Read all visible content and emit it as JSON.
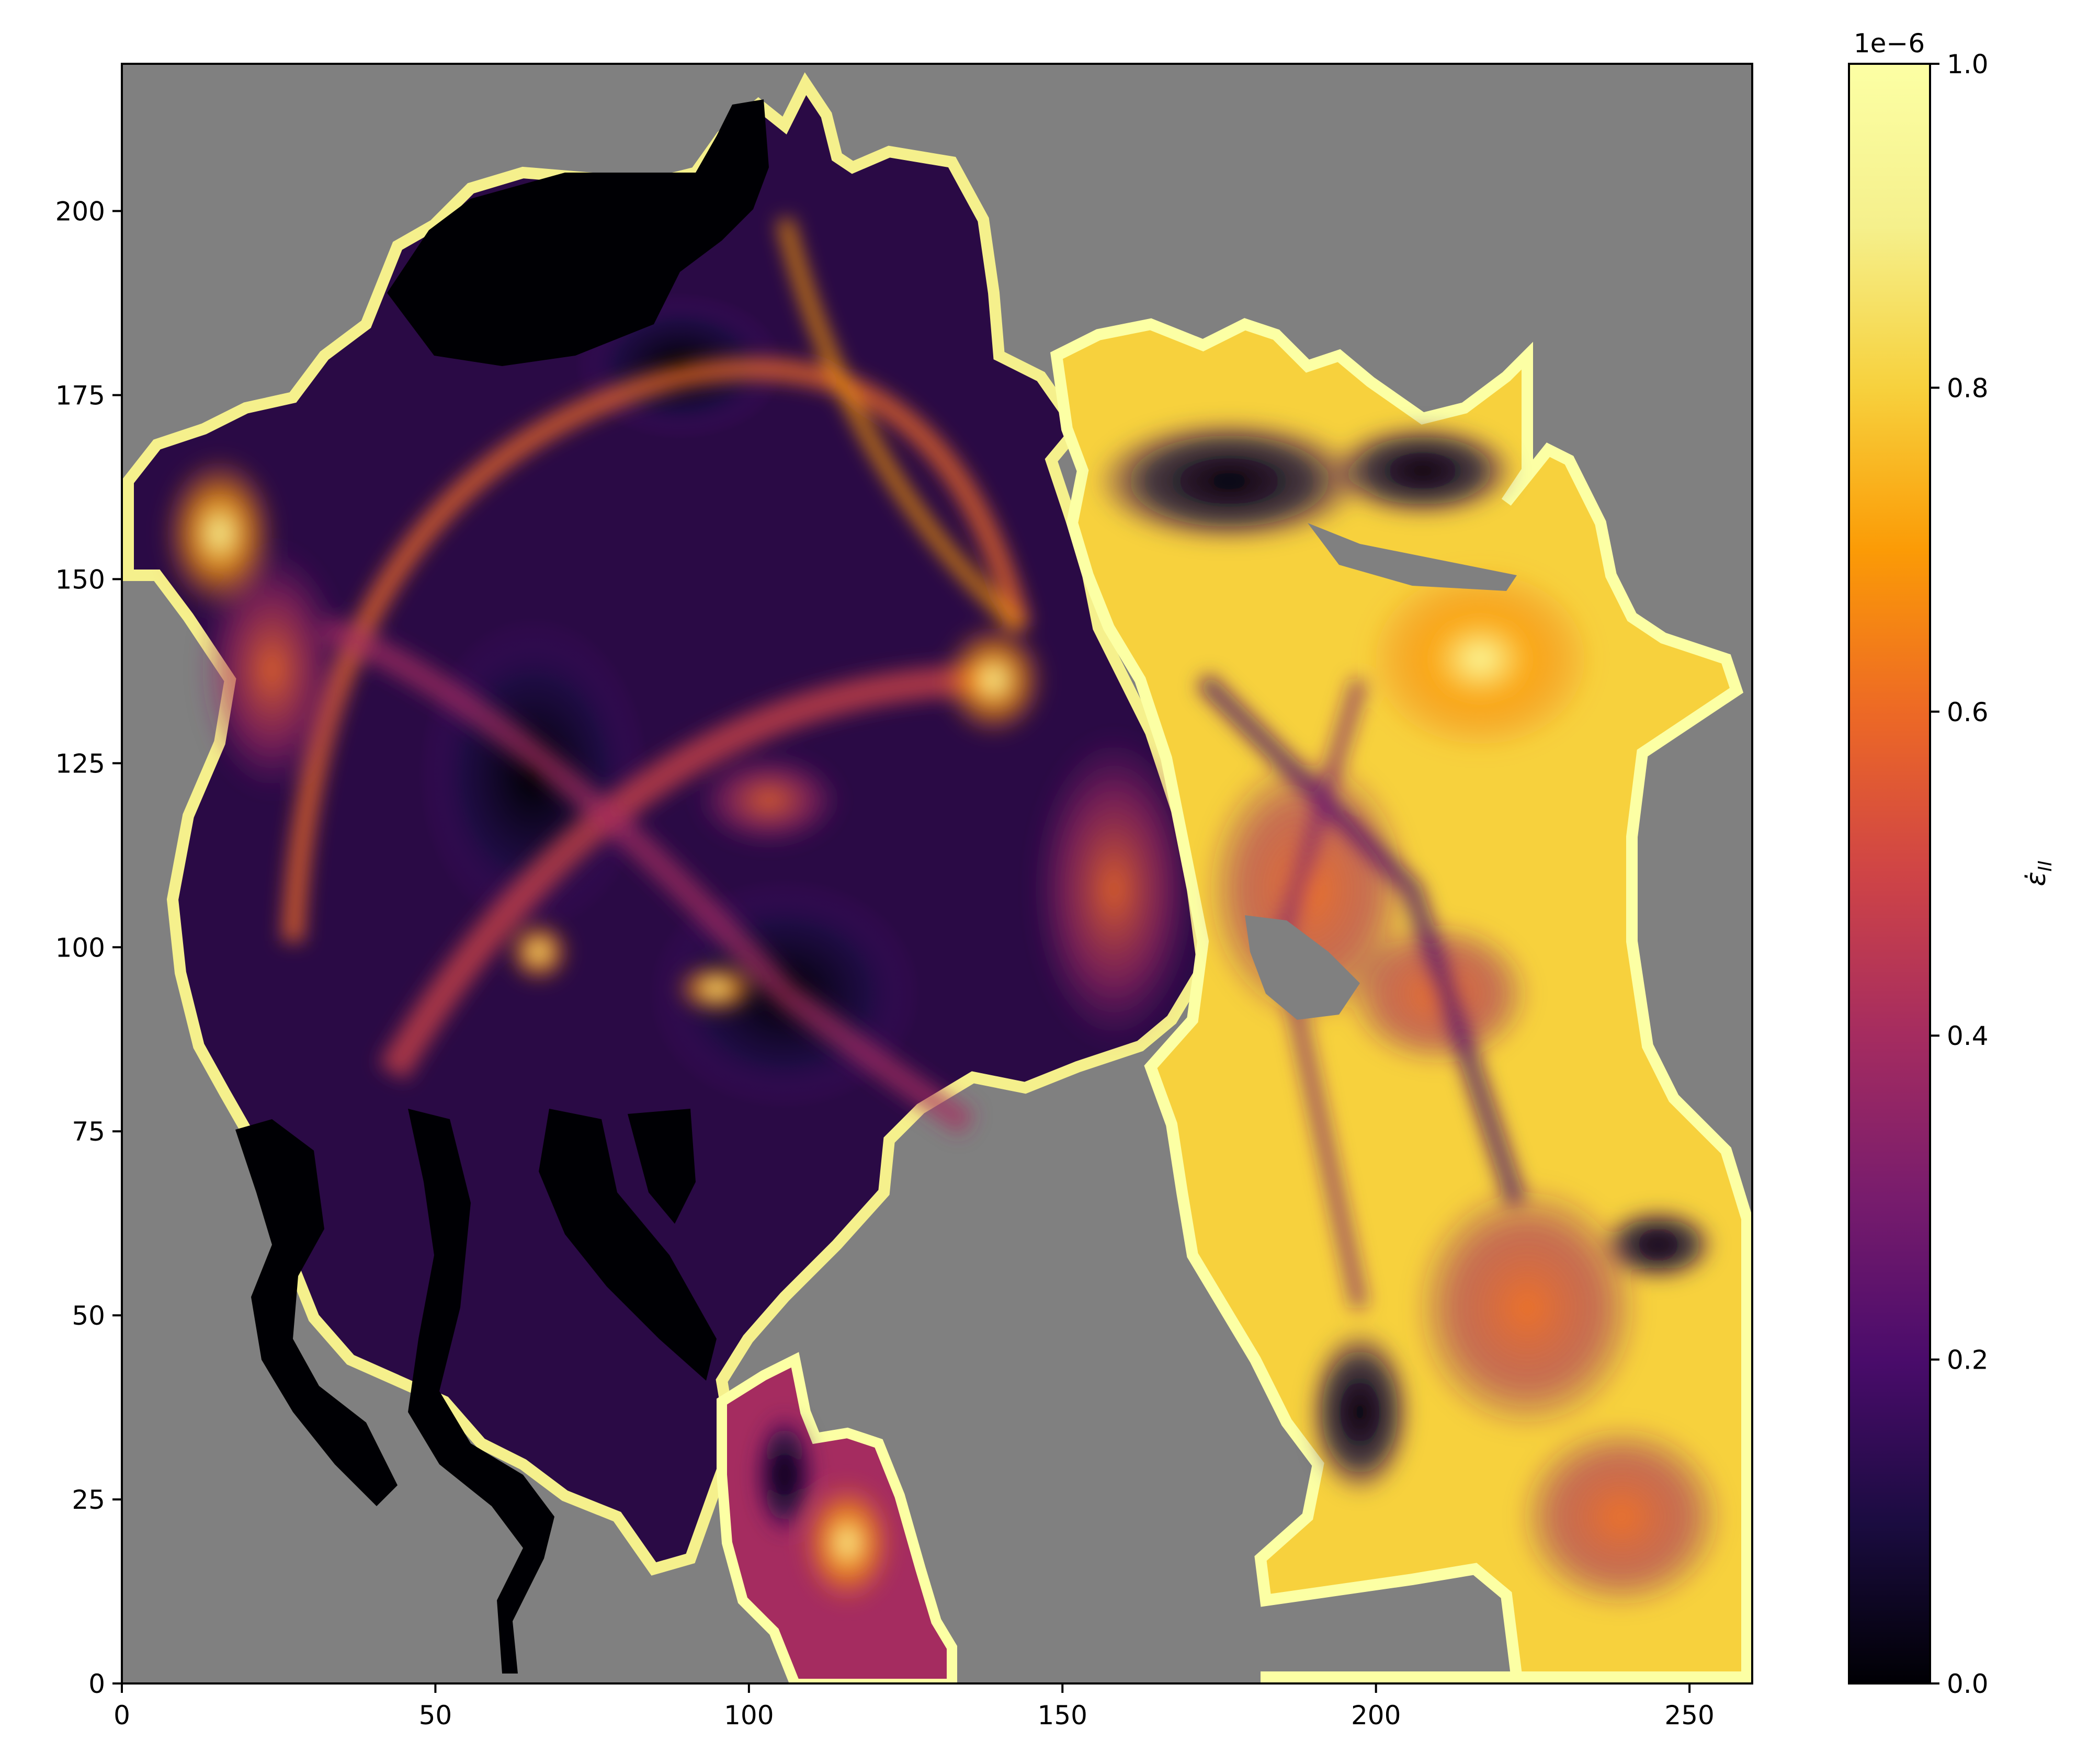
{
  "chart_data": {
    "type": "heatmap",
    "title": "",
    "xlabel": "",
    "ylabel": "",
    "xlim": [
      0,
      260
    ],
    "ylim": [
      0,
      220
    ],
    "xticks": [
      "0",
      "50",
      "100",
      "150",
      "200",
      "250"
    ],
    "yticks": [
      "0",
      "25",
      "50",
      "75",
      "100",
      "125",
      "150",
      "175",
      "200"
    ],
    "colormap": "inferno",
    "masked_color": "#808080",
    "colorbar": {
      "label": "ε̇_II",
      "label_main": "ε̇",
      "label_sub": "II",
      "range": [
        0.0,
        1.0
      ],
      "ticks": [
        "0.0",
        "0.2",
        "0.4",
        "0.6",
        "0.8",
        "1.0"
      ],
      "offset_text": "1e−6"
    }
  }
}
